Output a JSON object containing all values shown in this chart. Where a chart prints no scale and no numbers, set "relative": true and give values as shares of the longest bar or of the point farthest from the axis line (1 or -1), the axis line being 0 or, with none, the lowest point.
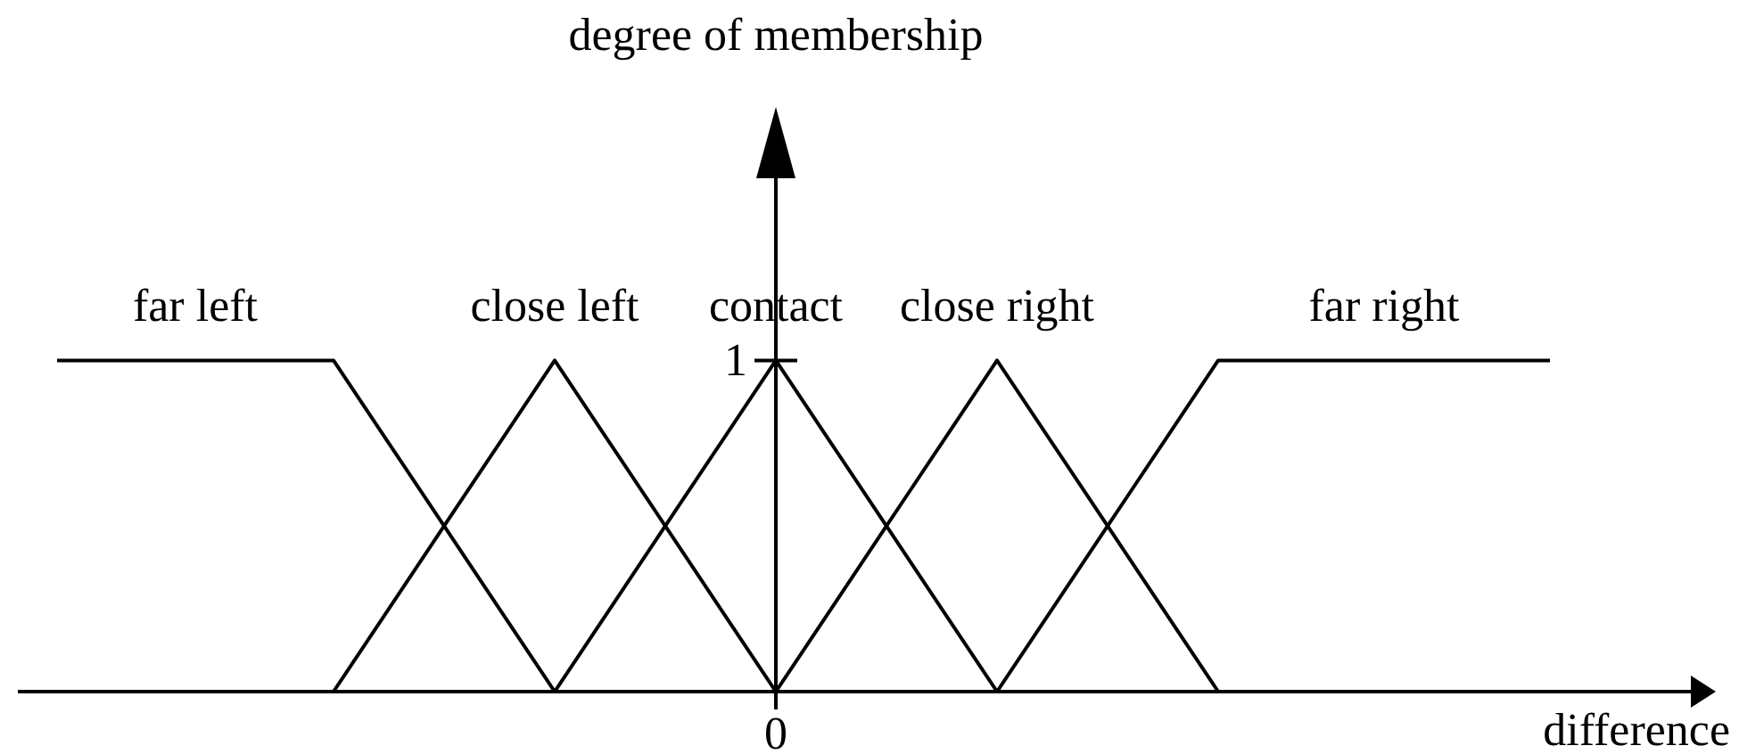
{
  "chart_data": {
    "type": "line",
    "xlabel": "difference",
    "relative": true,
    "categories": [
      null,
      null,
      null,
      null,
      null,
      null,
      null,
      null,
      null,
      null,
      null,
      null,
      null,
      null,
      null,
      null,
      null,
      null,
      null,
      null,
      null,
      null,
      null,
      null,
      null,
      null,
      null,
      null
    ],
    "annotations": [
      "1",
      "0",
      "degree of membership"
    ],
    "marker": "none",
    "line_style": "solid",
    "series": [
      {
        "name": "far left",
        "color": "#000000",
        "values": [
          1,
          1,
          1,
          1,
          1,
          1,
          0.75,
          0.5,
          0.25,
          0,
          null,
          null,
          null,
          null,
          null,
          null,
          null,
          null,
          null,
          null,
          null,
          null,
          null,
          null,
          null,
          null,
          null,
          null
        ]
      },
      {
        "name": "close left",
        "color": "#000000",
        "values": [
          null,
          null,
          null,
          null,
          null,
          0,
          0.25,
          0.5,
          0.75,
          1,
          0.75,
          0.5,
          0.25,
          0,
          null,
          null,
          null,
          null,
          null,
          null,
          null,
          null,
          null,
          null,
          null,
          null,
          null,
          null
        ]
      },
      {
        "name": "contact",
        "color": "#000000",
        "values": [
          null,
          null,
          null,
          null,
          null,
          null,
          null,
          null,
          null,
          0,
          0.25,
          0.5,
          0.75,
          1,
          0.75,
          0.5,
          0.25,
          0,
          null,
          null,
          null,
          null,
          null,
          null,
          null,
          null,
          null,
          null
        ]
      },
      {
        "name": "close right",
        "color": "#000000",
        "values": [
          null,
          null,
          null,
          null,
          null,
          null,
          null,
          null,
          null,
          null,
          null,
          null,
          null,
          0,
          0.25,
          0.5,
          0.75,
          1,
          0.75,
          0.5,
          0.25,
          0,
          null,
          null,
          null,
          null,
          null,
          null
        ]
      },
      {
        "name": "far right",
        "color": "#000000",
        "values": [
          null,
          null,
          null,
          null,
          null,
          null,
          null,
          null,
          null,
          null,
          null,
          null,
          null,
          null,
          null,
          null,
          null,
          0,
          0.25,
          0.5,
          0.75,
          1,
          1,
          1,
          1,
          1,
          1,
          1
        ]
      }
    ]
  }
}
